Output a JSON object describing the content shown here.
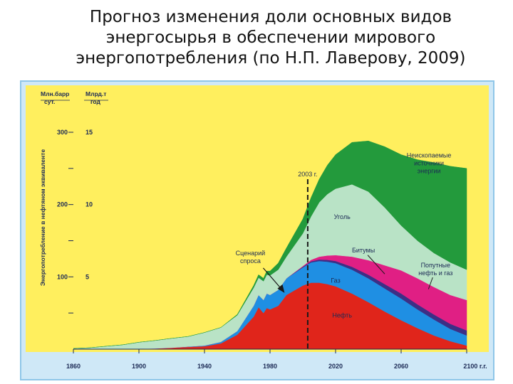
{
  "slide": {
    "title": "Прогноз изменения доли основных видов\nэнергосырья в обеспечении мирового\nэнергопотребления (по Н.П. Лаверову, 2009)"
  },
  "colors": {
    "background": "#ffef5e",
    "oil": "#e0251b",
    "gas": "#1f8fe3",
    "bitumen": "#3d2f86",
    "associated": "#e01f84",
    "coal": "#b9e3c6",
    "nonfossil": "#239a3c",
    "frame": "#cfe8f7",
    "text": "#1c2a55"
  },
  "chart_data": {
    "type": "area",
    "stacked": true,
    "y_axis_label": "Энергопотребление в нефтяном эквиваленте",
    "left_axis_title_line1": "Млн.барр",
    "left_axis_title_line2": "сут.",
    "right_axis_title_line1": "Млрд.т",
    "right_axis_title_line2": "год",
    "xlim": [
      1860,
      2110
    ],
    "ylim": [
      0,
      300
    ],
    "x_ticks": [
      {
        "value": 1860,
        "label": "1860"
      },
      {
        "value": 1900,
        "label": "1900"
      },
      {
        "value": 1940,
        "label": "1940"
      },
      {
        "value": 1980,
        "label": "1980"
      },
      {
        "value": 2020,
        "label": "2020"
      },
      {
        "value": 2060,
        "label": "2060"
      },
      {
        "value": 2100,
        "label": "2100 г.г."
      }
    ],
    "y_ticks": [
      {
        "value": 100,
        "left_label": "100",
        "right_label": "5"
      },
      {
        "value": 200,
        "left_label": "200",
        "right_label": "10"
      },
      {
        "value": 300,
        "left_label": "300",
        "right_label": "15"
      }
    ],
    "y_minor_ticks": [
      50,
      150,
      250
    ],
    "x": [
      1860,
      1870,
      1880,
      1890,
      1900,
      1910,
      1920,
      1930,
      1940,
      1950,
      1960,
      1970,
      1973,
      1976,
      1978,
      1980,
      1985,
      1990,
      2000,
      2005,
      2010,
      2015,
      2020,
      2030,
      2040,
      2050,
      2060,
      2070,
      2080,
      2090,
      2100
    ],
    "series": [
      {
        "name": "Нефть",
        "key": "oil",
        "values": [
          0,
          0,
          0,
          0,
          0.5,
          1,
          2,
          3,
          4,
          8,
          20,
          45,
          58,
          50,
          57,
          55,
          60,
          75,
          88,
          92,
          92,
          90,
          87,
          77,
          65,
          52,
          40,
          29,
          19,
          11,
          5
        ]
      },
      {
        "name": "Газ",
        "key": "gas",
        "values": [
          0,
          0,
          0,
          0,
          0,
          0,
          0,
          0.5,
          1,
          2,
          5,
          15,
          17,
          18,
          20,
          20,
          22,
          23,
          25,
          28,
          30,
          31,
          32,
          33,
          33,
          32,
          30,
          26,
          22,
          17,
          14
        ]
      },
      {
        "name": "Битумы",
        "key": "bitumen",
        "values": [
          0,
          0,
          0,
          0,
          0,
          0,
          0,
          0,
          0,
          0,
          0,
          0,
          0,
          0,
          0,
          0,
          0,
          0,
          1,
          1.5,
          2,
          2.5,
          3,
          4,
          5,
          6,
          7,
          7,
          7,
          7,
          7
        ]
      },
      {
        "name": "Попутные нефть и газ",
        "key": "associated",
        "values": [
          0,
          0,
          0,
          0,
          0,
          0,
          0,
          0,
          0,
          0,
          0,
          0,
          0,
          0,
          0,
          0,
          0,
          0,
          1,
          2,
          4,
          6,
          8,
          14,
          20,
          26,
          32,
          36,
          38,
          40,
          42
        ]
      },
      {
        "name": "Уголь",
        "key": "coal",
        "values": [
          1,
          2,
          4,
          6,
          9,
          11,
          13,
          14,
          18,
          20,
          22,
          25,
          24,
          26,
          26,
          27,
          28,
          30,
          45,
          60,
          75,
          85,
          92,
          100,
          95,
          80,
          62,
          52,
          47,
          45,
          42
        ]
      },
      {
        "name": "Неископаемые источники энергии",
        "key": "nonfossil",
        "values": [
          0,
          0,
          0,
          0,
          0,
          0,
          0,
          0,
          0,
          0,
          1,
          3,
          4,
          4,
          5,
          6,
          9,
          12,
          20,
          26,
          32,
          40,
          47,
          58,
          70,
          84,
          98,
          112,
          125,
          133,
          140
        ]
      }
    ],
    "annotations": [
      {
        "key": "marker_2003",
        "text": "2003 г.",
        "x": 2003
      },
      {
        "key": "scenario",
        "text": "Сценарий\nспроса",
        "x": 1968,
        "y": 130
      },
      {
        "key": "label_nonfossil",
        "text": "Неископаемые\nисточники\nэнергии",
        "x": 2077,
        "y": 265
      },
      {
        "key": "label_coal",
        "text": "Уголь",
        "x": 2024,
        "y": 180
      },
      {
        "key": "label_bitumen",
        "text": "Битумы",
        "x": 2037,
        "y": 134
      },
      {
        "key": "label_associated",
        "text": "Попутные\nнефть и газ",
        "x": 2081,
        "y": 113
      },
      {
        "key": "label_gas",
        "text": "Газ",
        "x": 2020,
        "y": 92
      },
      {
        "key": "label_oil",
        "text": "Нефть",
        "x": 2024,
        "y": 44
      }
    ]
  }
}
